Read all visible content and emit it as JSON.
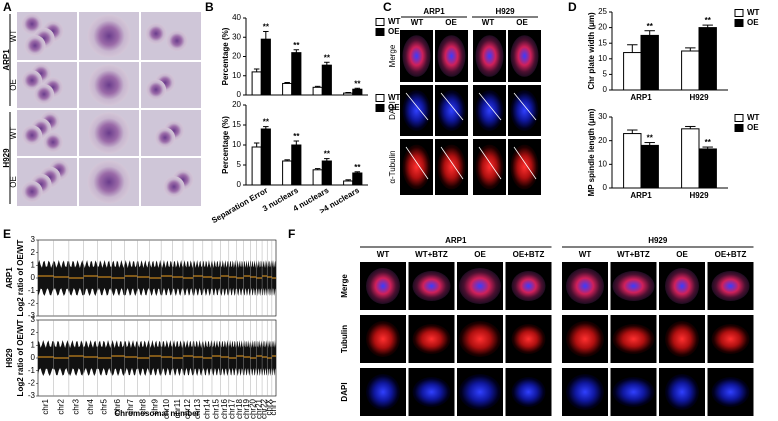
{
  "panel_letters": [
    "A",
    "B",
    "C",
    "D",
    "E",
    "F"
  ],
  "panel_a": {
    "groups": [
      "ARP1",
      "H929"
    ],
    "rows": [
      "WT",
      "OE"
    ]
  },
  "chart_data": [
    {
      "type": "bar",
      "ylabel": "Percentage (%)",
      "ylim": [
        0,
        40
      ],
      "yticks": [
        0,
        10,
        20,
        30,
        40
      ],
      "series": [
        {
          "name": "WT",
          "color": "#ffffff",
          "values": [
            12,
            6,
            4,
            1
          ],
          "errors": [
            1.5,
            0.5,
            0.5,
            0.3
          ]
        },
        {
          "name": "OE",
          "color": "#000000",
          "values": [
            29,
            22,
            15.5,
            3
          ],
          "errors": [
            4,
            1.5,
            1.5,
            0.5
          ],
          "annotations": [
            "**",
            "**",
            "**",
            "**"
          ]
        }
      ]
    },
    {
      "type": "bar",
      "ylabel": "Percentage (%)",
      "ylim": [
        0,
        20
      ],
      "yticks": [
        0,
        5,
        10,
        15,
        20
      ],
      "categories": [
        "Separation Error",
        "3 nuclears",
        "4 nuclears",
        ">4 nuclears"
      ],
      "series": [
        {
          "name": "WT",
          "color": "#ffffff",
          "values": [
            9.5,
            6,
            3.8,
            1
          ],
          "errors": [
            1,
            0.3,
            0.3,
            0.3
          ]
        },
        {
          "name": "OE",
          "color": "#000000",
          "values": [
            14,
            10,
            6,
            3
          ],
          "errors": [
            0.6,
            1,
            0.6,
            0.3
          ],
          "annotations": [
            "**",
            "**",
            "**",
            "**"
          ]
        }
      ]
    },
    {
      "type": "bar",
      "ylabel": "Chr plate width (μm)",
      "ylim": [
        0,
        25
      ],
      "yticks": [
        0,
        5,
        10,
        15,
        20,
        25
      ],
      "categories": [
        "ARP1",
        "H929"
      ],
      "series": [
        {
          "name": "WT",
          "color": "#ffffff",
          "values": [
            12,
            12.5
          ],
          "errors": [
            2.5,
            1
          ]
        },
        {
          "name": "OE",
          "color": "#000000",
          "values": [
            17.5,
            20
          ],
          "errors": [
            1.5,
            0.8
          ],
          "annotations": [
            "**",
            "**"
          ]
        }
      ]
    },
    {
      "type": "bar",
      "ylabel": "MP spindle length (μm)",
      "ylim": [
        0,
        30
      ],
      "yticks": [
        0,
        10,
        20,
        30
      ],
      "categories": [
        "ARP1",
        "H929"
      ],
      "series": [
        {
          "name": "WT",
          "color": "#ffffff",
          "values": [
            23,
            25
          ],
          "errors": [
            1.5,
            1
          ]
        },
        {
          "name": "OE",
          "color": "#000000",
          "values": [
            18,
            16.5
          ],
          "errors": [
            1.2,
            0.8
          ],
          "annotations": [
            "**",
            "**"
          ]
        }
      ]
    }
  ],
  "panel_c": {
    "cell_lines": [
      "ARP1",
      "H929"
    ],
    "conditions": [
      "WT",
      "OE"
    ],
    "rows": [
      "Merge",
      "DAPI",
      "α-Tubulin"
    ]
  },
  "panel_e": {
    "rows": [
      "ARP1",
      "H929"
    ],
    "ylabel": "Log2 ratio of OE/WT",
    "xlabel": "Chromosomal number",
    "ylim": [
      -3,
      3
    ],
    "yticks": [
      3,
      2,
      1,
      0,
      -1,
      -2,
      -3
    ],
    "chromosomes": [
      "chr1",
      "chr2",
      "chr3",
      "chr4",
      "chr5",
      "chr6",
      "chr7",
      "chr8",
      "chr9",
      "chr10",
      "chr11",
      "chr12",
      "chr13",
      "chr14",
      "chr15",
      "chr16",
      "chr17",
      "chr18",
      "chr19",
      "chr20",
      "chr21",
      "chr22",
      "chrX",
      "chrY"
    ]
  },
  "panel_f": {
    "cell_lines": [
      "ARP1",
      "H929"
    ],
    "conditions": [
      "WT",
      "WT+BTZ",
      "OE",
      "OE+BTZ"
    ],
    "rows": [
      "Merge",
      "Tubulin",
      "DAPI"
    ]
  }
}
